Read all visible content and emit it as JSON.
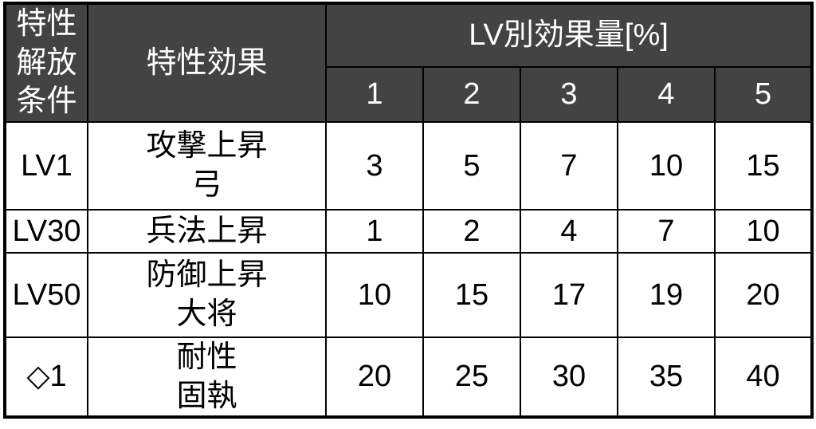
{
  "chart_data": {
    "type": "table",
    "header": {
      "condition": "特性解放条件",
      "effect": "特性効果",
      "group": "LV別効果量[%]",
      "levels": [
        "1",
        "2",
        "3",
        "4",
        "5"
      ]
    },
    "rows": [
      {
        "condition": "LV1",
        "effect": "攻撃上昇\n弓",
        "values": [
          "3",
          "5",
          "7",
          "10",
          "15"
        ]
      },
      {
        "condition": "LV30",
        "effect": "兵法上昇",
        "values": [
          "1",
          "2",
          "4",
          "7",
          "10"
        ]
      },
      {
        "condition": "LV50",
        "effect": "防御上昇\n大将",
        "values": [
          "10",
          "15",
          "17",
          "19",
          "20"
        ]
      },
      {
        "condition": "◇1",
        "effect": "耐性\n固執",
        "values": [
          "20",
          "25",
          "30",
          "35",
          "40"
        ]
      }
    ],
    "layout": {
      "grid": "on",
      "header_position": "top"
    }
  },
  "colors": {
    "header_bg": "#434343",
    "header_text": "#ffffff",
    "border": "#000000",
    "cell_bg": "#ffffff",
    "cell_text": "#000000"
  }
}
